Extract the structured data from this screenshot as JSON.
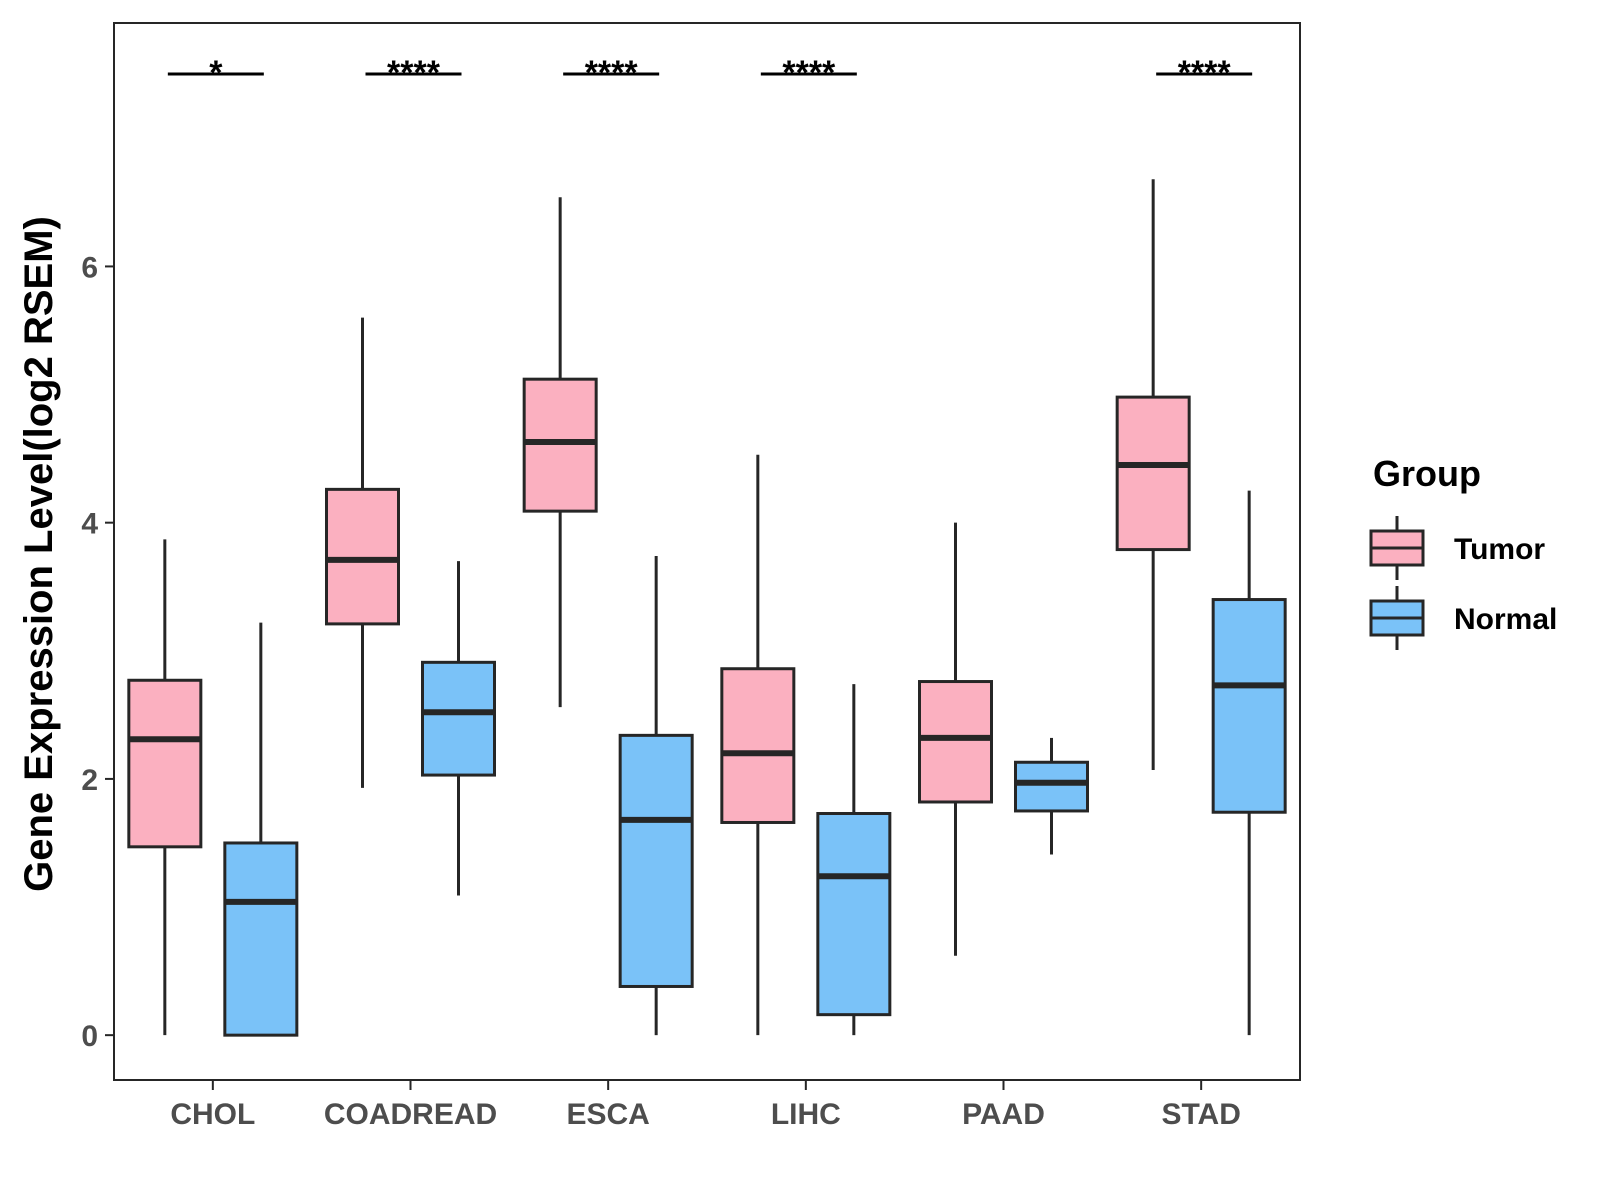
{
  "chart_data": {
    "type": "boxplot",
    "title": "",
    "xlabel": "",
    "ylabel": "Gene Expression Level(log2 RSEM)",
    "ylim": [
      -0.35,
      7.9
    ],
    "yticks": [
      0,
      2,
      4,
      6
    ],
    "grid": false,
    "categories": [
      "CHOL",
      "COADREAD",
      "ESCA",
      "LIHC",
      "PAAD",
      "STAD"
    ],
    "significance": [
      "*",
      "****",
      "****",
      "****",
      "",
      "****"
    ],
    "legend": {
      "title": "Group",
      "position": "right",
      "entries": [
        "Tumor",
        "Normal"
      ]
    },
    "series": [
      {
        "name": "Tumor",
        "color": "#FBB0C0",
        "boxes": [
          {
            "min": 0.0,
            "q1": 1.47,
            "median": 2.31,
            "q3": 2.77,
            "max": 3.87
          },
          {
            "min": 1.93,
            "q1": 3.21,
            "median": 3.71,
            "q3": 4.26,
            "max": 5.6
          },
          {
            "min": 2.56,
            "q1": 4.09,
            "median": 4.63,
            "q3": 5.12,
            "max": 6.54
          },
          {
            "min": 0.0,
            "q1": 1.66,
            "median": 2.2,
            "q3": 2.86,
            "max": 4.53
          },
          {
            "min": 0.62,
            "q1": 1.82,
            "median": 2.32,
            "q3": 2.76,
            "max": 4.0
          },
          {
            "min": 2.07,
            "q1": 3.79,
            "median": 4.45,
            "q3": 4.98,
            "max": 6.68
          }
        ]
      },
      {
        "name": "Normal",
        "color": "#7AC2F8",
        "boxes": [
          {
            "min": 0.0,
            "q1": 0.0,
            "median": 1.04,
            "q3": 1.5,
            "max": 3.22
          },
          {
            "min": 1.09,
            "q1": 2.03,
            "median": 2.52,
            "q3": 2.91,
            "max": 3.7
          },
          {
            "min": 0.0,
            "q1": 0.38,
            "median": 1.68,
            "q3": 2.34,
            "max": 3.74
          },
          {
            "min": 0.0,
            "q1": 0.16,
            "median": 1.24,
            "q3": 1.73,
            "max": 2.74
          },
          {
            "min": 1.41,
            "q1": 1.75,
            "median": 1.97,
            "q3": 2.13,
            "max": 2.32
          },
          {
            "min": 0.0,
            "q1": 1.74,
            "median": 2.73,
            "q3": 3.4,
            "max": 4.25
          }
        ]
      }
    ]
  }
}
